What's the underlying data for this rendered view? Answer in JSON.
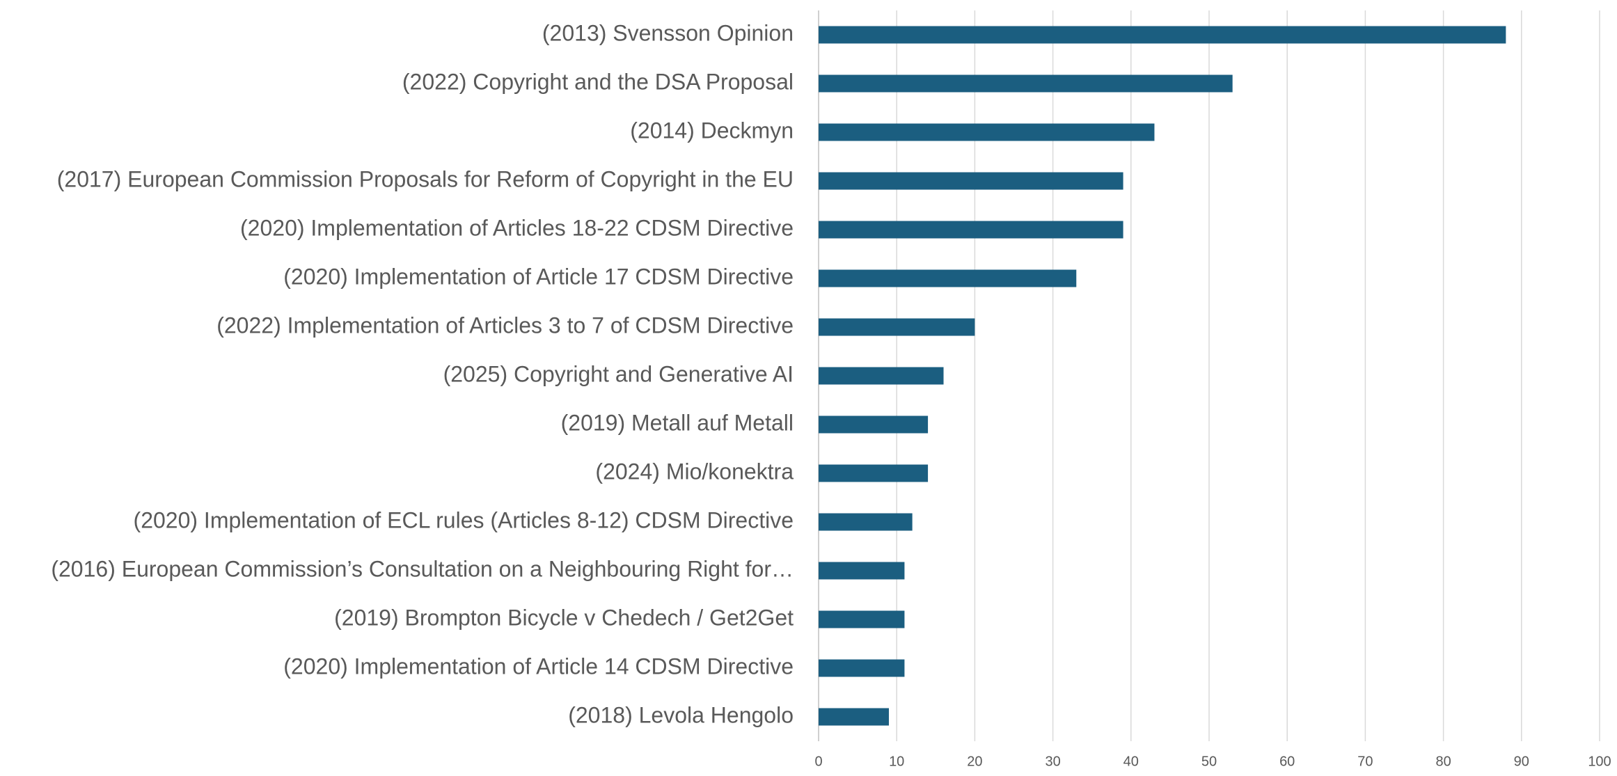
{
  "chart_data": {
    "type": "hbar",
    "categories": [
      "(2013) Svensson Opinion",
      "(2022) Copyright and the DSA Proposal",
      "(2014) Deckmyn",
      "(2017) European Commission Proposals for Reform of Copyright in the EU",
      "(2020) Implementation of Articles 18-22 CDSM Directive",
      "(2020) Implementation of Article 17 CDSM Directive",
      "(2022) Implementation of Articles 3 to 7 of CDSM Directive",
      "(2025) Copyright and Generative AI",
      "(2019) Metall auf Metall",
      "(2024) Mio/konektra",
      "(2020) Implementation of ECL rules (Articles 8-12) CDSM Directive",
      "(2016) European Commission’s Consultation on a Neighbouring Right for…",
      "(2019) Brompton Bicycle v Chedech / Get2Get",
      "(2020) Implementation of Article 14 CDSM Directive",
      "(2018) Levola Hengolo"
    ],
    "values": [
      88,
      53,
      43,
      39,
      39,
      33,
      20,
      16,
      14,
      14,
      12,
      11,
      11,
      11,
      9
    ],
    "color": "#1b5e80",
    "xlim": [
      0,
      100
    ],
    "xticks": [
      0,
      10,
      20,
      30,
      40,
      50,
      60,
      70,
      80,
      90,
      100
    ],
    "grid": true
  }
}
